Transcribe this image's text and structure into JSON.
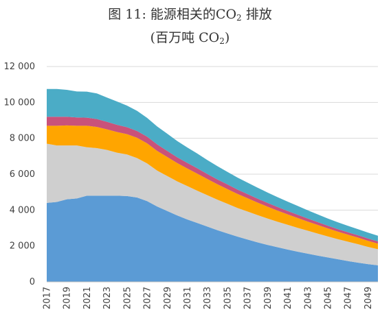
{
  "title": {
    "line1_prefix": "图 11: 能源相关的CO",
    "line1_sub": "2",
    "line1_suffix": " 排放",
    "line2_prefix": "(百万吨 CO",
    "line2_sub": "2",
    "line2_suffix": ")"
  },
  "chart_data": {
    "type": "area",
    "stacked": true,
    "x": [
      2017,
      2018,
      2019,
      2020,
      2021,
      2022,
      2023,
      2024,
      2025,
      2026,
      2027,
      2028,
      2029,
      2030,
      2031,
      2032,
      2033,
      2034,
      2035,
      2036,
      2037,
      2038,
      2039,
      2040,
      2041,
      2042,
      2043,
      2044,
      2045,
      2046,
      2047,
      2048,
      2049,
      2050
    ],
    "x_tick_labels": [
      "2017",
      "2019",
      "2021",
      "2023",
      "2025",
      "2027",
      "2029",
      "2031",
      "2033",
      "2035",
      "2037",
      "2039",
      "2041",
      "2043",
      "2045",
      "2047",
      "2049"
    ],
    "y_ticks": [
      0,
      2000,
      4000,
      6000,
      8000,
      10000,
      12000
    ],
    "y_tick_labels": [
      "0",
      "2 000",
      "4 000",
      "6 000",
      "8 000",
      "10 000",
      "12 000"
    ],
    "ylim": [
      0,
      12000
    ],
    "grid": true,
    "legend": "none",
    "series": [
      {
        "color": "#5B9BD5",
        "values": [
          4400,
          4450,
          4600,
          4650,
          4800,
          4800,
          4800,
          4800,
          4780,
          4700,
          4500,
          4200,
          3950,
          3700,
          3480,
          3280,
          3080,
          2880,
          2700,
          2520,
          2360,
          2200,
          2060,
          1930,
          1800,
          1680,
          1570,
          1460,
          1360,
          1260,
          1160,
          1070,
          990,
          920
        ]
      },
      {
        "color": "#CFCFCF",
        "values": [
          3300,
          3150,
          3000,
          2950,
          2700,
          2650,
          2550,
          2400,
          2320,
          2200,
          2100,
          2000,
          1950,
          1900,
          1860,
          1800,
          1750,
          1700,
          1650,
          1600,
          1560,
          1520,
          1470,
          1420,
          1380,
          1330,
          1280,
          1230,
          1170,
          1120,
          1080,
          1030,
          960,
          900
        ]
      },
      {
        "color": "#FFA500",
        "values": [
          1000,
          1100,
          1120,
          1100,
          1200,
          1180,
          1150,
          1150,
          1130,
          1130,
          1120,
          1100,
          1060,
          1020,
          980,
          950,
          900,
          860,
          820,
          780,
          740,
          700,
          660,
          620,
          580,
          550,
          510,
          480,
          450,
          420,
          390,
          370,
          340,
          310
        ]
      },
      {
        "color": "#C9527A",
        "values": [
          500,
          500,
          480,
          460,
          450,
          440,
          420,
          400,
          390,
          380,
          370,
          360,
          340,
          320,
          310,
          300,
          280,
          270,
          260,
          245,
          230,
          220,
          210,
          200,
          190,
          180,
          170,
          160,
          150,
          140,
          135,
          130,
          125,
          120
        ]
      },
      {
        "color": "#4BACC6",
        "values": [
          1550,
          1550,
          1500,
          1450,
          1450,
          1430,
          1350,
          1300,
          1200,
          1120,
          1050,
          1000,
          960,
          910,
          860,
          820,
          780,
          740,
          700,
          670,
          640,
          610,
          580,
          550,
          520,
          490,
          460,
          430,
          400,
          380,
          360,
          340,
          330,
          320
        ]
      }
    ]
  }
}
